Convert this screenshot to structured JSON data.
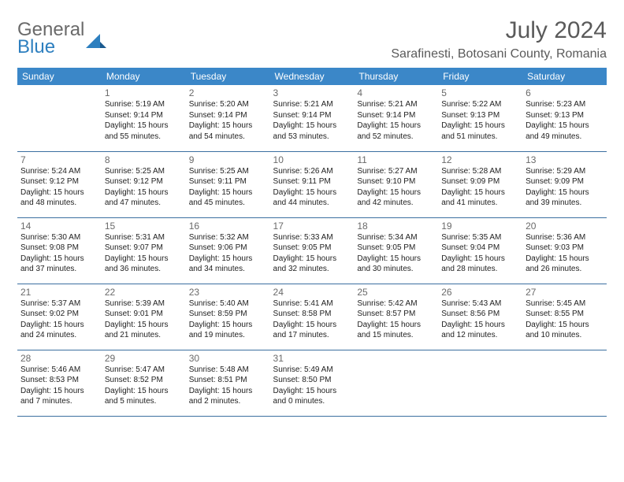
{
  "brand": {
    "part1": "General",
    "part2": "Blue"
  },
  "title": "July 2024",
  "location": "Sarafinesti, Botosani County, Romania",
  "colors": {
    "header_bg": "#3b87c8",
    "header_text": "#ffffff",
    "rule": "#3b6fa0",
    "text_muted": "#6a6a6a",
    "logo_blue": "#2d7fbf"
  },
  "weekdays": [
    "Sunday",
    "Monday",
    "Tuesday",
    "Wednesday",
    "Thursday",
    "Friday",
    "Saturday"
  ],
  "weeks": [
    [
      null,
      {
        "n": "1",
        "sr": "5:19 AM",
        "ss": "9:14 PM",
        "dl": "15 hours and 55 minutes."
      },
      {
        "n": "2",
        "sr": "5:20 AM",
        "ss": "9:14 PM",
        "dl": "15 hours and 54 minutes."
      },
      {
        "n": "3",
        "sr": "5:21 AM",
        "ss": "9:14 PM",
        "dl": "15 hours and 53 minutes."
      },
      {
        "n": "4",
        "sr": "5:21 AM",
        "ss": "9:14 PM",
        "dl": "15 hours and 52 minutes."
      },
      {
        "n": "5",
        "sr": "5:22 AM",
        "ss": "9:13 PM",
        "dl": "15 hours and 51 minutes."
      },
      {
        "n": "6",
        "sr": "5:23 AM",
        "ss": "9:13 PM",
        "dl": "15 hours and 49 minutes."
      }
    ],
    [
      {
        "n": "7",
        "sr": "5:24 AM",
        "ss": "9:12 PM",
        "dl": "15 hours and 48 minutes."
      },
      {
        "n": "8",
        "sr": "5:25 AM",
        "ss": "9:12 PM",
        "dl": "15 hours and 47 minutes."
      },
      {
        "n": "9",
        "sr": "5:25 AM",
        "ss": "9:11 PM",
        "dl": "15 hours and 45 minutes."
      },
      {
        "n": "10",
        "sr": "5:26 AM",
        "ss": "9:11 PM",
        "dl": "15 hours and 44 minutes."
      },
      {
        "n": "11",
        "sr": "5:27 AM",
        "ss": "9:10 PM",
        "dl": "15 hours and 42 minutes."
      },
      {
        "n": "12",
        "sr": "5:28 AM",
        "ss": "9:09 PM",
        "dl": "15 hours and 41 minutes."
      },
      {
        "n": "13",
        "sr": "5:29 AM",
        "ss": "9:09 PM",
        "dl": "15 hours and 39 minutes."
      }
    ],
    [
      {
        "n": "14",
        "sr": "5:30 AM",
        "ss": "9:08 PM",
        "dl": "15 hours and 37 minutes."
      },
      {
        "n": "15",
        "sr": "5:31 AM",
        "ss": "9:07 PM",
        "dl": "15 hours and 36 minutes."
      },
      {
        "n": "16",
        "sr": "5:32 AM",
        "ss": "9:06 PM",
        "dl": "15 hours and 34 minutes."
      },
      {
        "n": "17",
        "sr": "5:33 AM",
        "ss": "9:05 PM",
        "dl": "15 hours and 32 minutes."
      },
      {
        "n": "18",
        "sr": "5:34 AM",
        "ss": "9:05 PM",
        "dl": "15 hours and 30 minutes."
      },
      {
        "n": "19",
        "sr": "5:35 AM",
        "ss": "9:04 PM",
        "dl": "15 hours and 28 minutes."
      },
      {
        "n": "20",
        "sr": "5:36 AM",
        "ss": "9:03 PM",
        "dl": "15 hours and 26 minutes."
      }
    ],
    [
      {
        "n": "21",
        "sr": "5:37 AM",
        "ss": "9:02 PM",
        "dl": "15 hours and 24 minutes."
      },
      {
        "n": "22",
        "sr": "5:39 AM",
        "ss": "9:01 PM",
        "dl": "15 hours and 21 minutes."
      },
      {
        "n": "23",
        "sr": "5:40 AM",
        "ss": "8:59 PM",
        "dl": "15 hours and 19 minutes."
      },
      {
        "n": "24",
        "sr": "5:41 AM",
        "ss": "8:58 PM",
        "dl": "15 hours and 17 minutes."
      },
      {
        "n": "25",
        "sr": "5:42 AM",
        "ss": "8:57 PM",
        "dl": "15 hours and 15 minutes."
      },
      {
        "n": "26",
        "sr": "5:43 AM",
        "ss": "8:56 PM",
        "dl": "15 hours and 12 minutes."
      },
      {
        "n": "27",
        "sr": "5:45 AM",
        "ss": "8:55 PM",
        "dl": "15 hours and 10 minutes."
      }
    ],
    [
      {
        "n": "28",
        "sr": "5:46 AM",
        "ss": "8:53 PM",
        "dl": "15 hours and 7 minutes."
      },
      {
        "n": "29",
        "sr": "5:47 AM",
        "ss": "8:52 PM",
        "dl": "15 hours and 5 minutes."
      },
      {
        "n": "30",
        "sr": "5:48 AM",
        "ss": "8:51 PM",
        "dl": "15 hours and 2 minutes."
      },
      {
        "n": "31",
        "sr": "5:49 AM",
        "ss": "8:50 PM",
        "dl": "15 hours and 0 minutes."
      },
      null,
      null,
      null
    ]
  ],
  "labels": {
    "sunrise": "Sunrise: ",
    "sunset": "Sunset: ",
    "daylight": "Daylight: "
  }
}
